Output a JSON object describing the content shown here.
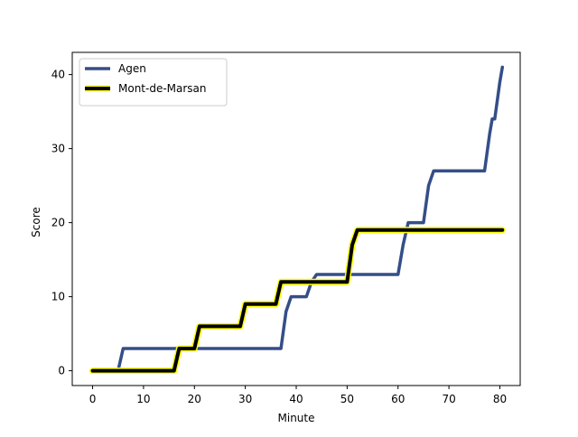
{
  "chart_data": {
    "type": "line",
    "title": "",
    "xlabel": "Minute",
    "ylabel": "Score",
    "xlim": [
      -4,
      84
    ],
    "ylim": [
      -2,
      43
    ],
    "xticks": [
      0,
      10,
      20,
      30,
      40,
      50,
      60,
      70,
      80
    ],
    "yticks": [
      0,
      10,
      20,
      30,
      40
    ],
    "grid": false,
    "legend_position": "top-left",
    "series": [
      {
        "name": "Agen",
        "color": "#344e88",
        "x": [
          0,
          5,
          6,
          37,
          38,
          39,
          42,
          43,
          44,
          60,
          61,
          62,
          65,
          66,
          67,
          77,
          78,
          78.5,
          79,
          80,
          80.5
        ],
        "y": [
          0,
          0,
          3,
          3,
          8,
          10,
          10,
          12,
          13,
          13,
          17,
          20,
          20,
          25,
          27,
          27,
          32,
          34,
          34,
          39,
          41
        ]
      },
      {
        "name": "Mont-de-Marsan",
        "color": "#000000",
        "outline_color": "#ffff00",
        "x": [
          0,
          16,
          17,
          20,
          21,
          29,
          30,
          36,
          37,
          50,
          51,
          52,
          80.5
        ],
        "y": [
          0,
          0,
          3,
          3,
          6,
          6,
          9,
          9,
          12,
          12,
          17,
          19,
          19
        ]
      }
    ]
  }
}
